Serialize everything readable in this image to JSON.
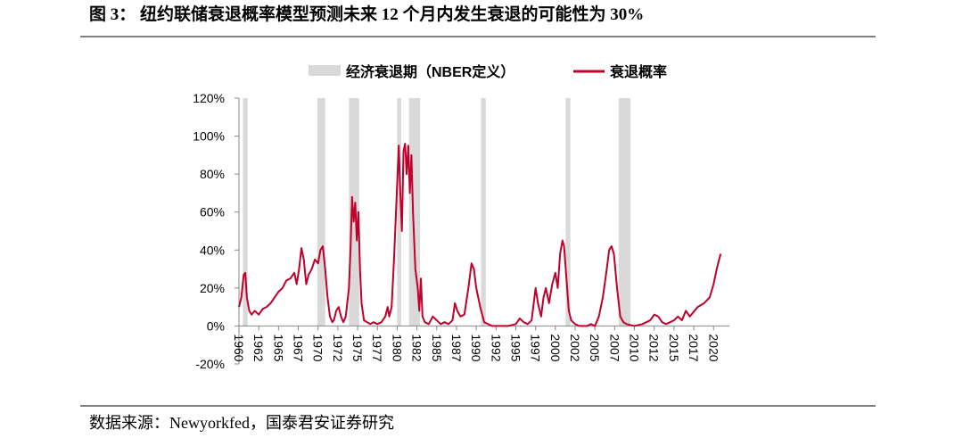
{
  "chart_data": {
    "type": "line",
    "title": "图 3：  纽约联储衰退概率模型预测未来 12 个月内发生衰退的可能性为 30%",
    "source": "数据来源：Newyorkfed，国泰君安证券研究",
    "recession_bands": {
      "name": "经济衰退期（NBER定义）",
      "color": "#d9d9d9",
      "ranges": [
        [
          1960.5,
          1961.1
        ],
        [
          1969.9,
          1970.9
        ],
        [
          1973.9,
          1975.2
        ],
        [
          1980.0,
          1980.5
        ],
        [
          1981.5,
          1982.9
        ],
        [
          1990.6,
          1991.2
        ],
        [
          2001.3,
          2001.9
        ],
        [
          2008.0,
          2009.5
        ]
      ]
    },
    "series": [
      {
        "name": "衰退概率",
        "color": "#c0002a",
        "x": [
          1960.0,
          1960.3,
          1960.6,
          1960.8,
          1961.0,
          1961.3,
          1961.6,
          1962.0,
          1962.5,
          1963.0,
          1963.5,
          1964.0,
          1964.5,
          1965.0,
          1965.5,
          1966.0,
          1966.5,
          1967.0,
          1967.3,
          1967.6,
          1967.9,
          1968.2,
          1968.5,
          1968.8,
          1969.2,
          1969.6,
          1970.0,
          1970.3,
          1970.6,
          1970.9,
          1971.2,
          1971.5,
          1971.8,
          1972.0,
          1972.3,
          1972.6,
          1972.9,
          1973.2,
          1973.5,
          1973.9,
          1974.1,
          1974.3,
          1974.5,
          1974.7,
          1974.9,
          1975.1,
          1975.3,
          1975.5,
          1975.8,
          1976.2,
          1976.6,
          1977.0,
          1977.5,
          1978.0,
          1978.5,
          1978.8,
          1979.0,
          1979.3,
          1979.6,
          1979.8,
          1980.0,
          1980.2,
          1980.4,
          1980.6,
          1980.8,
          1981.0,
          1981.2,
          1981.4,
          1981.6,
          1981.8,
          1982.0,
          1982.3,
          1982.6,
          1982.8,
          1983.0,
          1983.2,
          1983.5,
          1984.0,
          1984.5,
          1985.0,
          1985.5,
          1986.0,
          1986.5,
          1987.0,
          1987.3,
          1987.6,
          1988.0,
          1988.5,
          1989.0,
          1989.4,
          1989.7,
          1990.0,
          1990.5,
          1991.0,
          1991.5,
          1992.0,
          1993.0,
          1994.0,
          1995.0,
          1995.5,
          1996.0,
          1996.5,
          1997.0,
          1997.5,
          1997.8,
          1998.2,
          1998.5,
          1998.8,
          1999.2,
          1999.6,
          2000.0,
          2000.3,
          2000.6,
          2000.9,
          2001.1,
          2001.4,
          2001.7,
          2002.0,
          2002.5,
          2003.0,
          2004.0,
          2004.5,
          2005.0,
          2005.5,
          2006.0,
          2006.5,
          2006.8,
          2007.1,
          2007.4,
          2007.8,
          2008.2,
          2008.6,
          2009.0,
          2010.0,
          2011.0,
          2012.0,
          2012.5,
          2013.0,
          2013.5,
          2014.0,
          2015.0,
          2015.5,
          2016.0,
          2016.5,
          2017.0,
          2018.0,
          2018.8,
          2019.5,
          2020.0,
          2020.4,
          2020.7,
          2020.9
        ],
        "values": [
          10,
          15,
          27,
          28,
          15,
          8,
          6,
          8,
          6,
          9,
          10,
          12,
          15,
          18,
          20,
          24,
          25,
          28,
          22,
          30,
          41,
          35,
          22,
          27,
          30,
          35,
          33,
          40,
          42,
          30,
          15,
          5,
          2,
          3,
          8,
          10,
          5,
          2,
          5,
          20,
          40,
          68,
          55,
          65,
          45,
          60,
          30,
          12,
          3,
          2,
          1,
          2,
          1,
          2,
          5,
          10,
          5,
          10,
          35,
          55,
          75,
          95,
          70,
          50,
          92,
          96,
          80,
          95,
          70,
          90,
          60,
          30,
          20,
          8,
          25,
          5,
          2,
          1,
          5,
          3,
          1,
          2,
          1,
          3,
          12,
          8,
          5,
          6,
          20,
          33,
          30,
          20,
          10,
          2,
          1,
          0,
          0,
          0,
          1,
          4,
          2,
          1,
          3,
          20,
          12,
          5,
          15,
          20,
          12,
          22,
          28,
          20,
          38,
          45,
          42,
          25,
          8,
          3,
          1,
          0,
          0,
          1,
          0,
          5,
          15,
          30,
          40,
          42,
          38,
          20,
          5,
          2,
          1,
          0,
          1,
          3,
          6,
          5,
          2,
          1,
          3,
          5,
          3,
          8,
          5,
          10,
          12,
          15,
          22,
          30,
          35,
          38
        ]
      }
    ],
    "xlim": [
      1960,
      2022
    ],
    "xticks": [
      1960,
      {
        "value": 1962.5,
        "label": "1962"
      },
      1965,
      {
        "value": 1967.5,
        "label": "1967"
      },
      1970,
      {
        "value": 1972.5,
        "label": "1972"
      },
      1975,
      {
        "value": 1977.5,
        "label": "1977"
      },
      1980,
      {
        "value": 1982.5,
        "label": "1982"
      },
      1985,
      {
        "value": 1987.5,
        "label": "1987"
      },
      1990,
      {
        "value": 1992.5,
        "label": "1992"
      },
      1995,
      {
        "value": 1997.5,
        "label": "1997"
      },
      2000,
      {
        "value": 2002.5,
        "label": "2002"
      },
      2005,
      {
        "value": 2007.5,
        "label": "2007"
      },
      2010,
      {
        "value": 2012.5,
        "label": "2012"
      },
      2015,
      {
        "value": 2017.5,
        "label": "2017"
      },
      2020
    ],
    "ylim": [
      -20,
      120
    ],
    "yticks": [
      {
        "value": -20,
        "label": "-20%"
      },
      {
        "value": 0,
        "label": "0%"
      },
      {
        "value": 20,
        "label": "20%"
      },
      {
        "value": 40,
        "label": "40%"
      },
      {
        "value": 60,
        "label": "60%"
      },
      {
        "value": 80,
        "label": "80%"
      },
      {
        "value": 100,
        "label": "100%"
      },
      {
        "value": 120,
        "label": "120%"
      }
    ]
  }
}
